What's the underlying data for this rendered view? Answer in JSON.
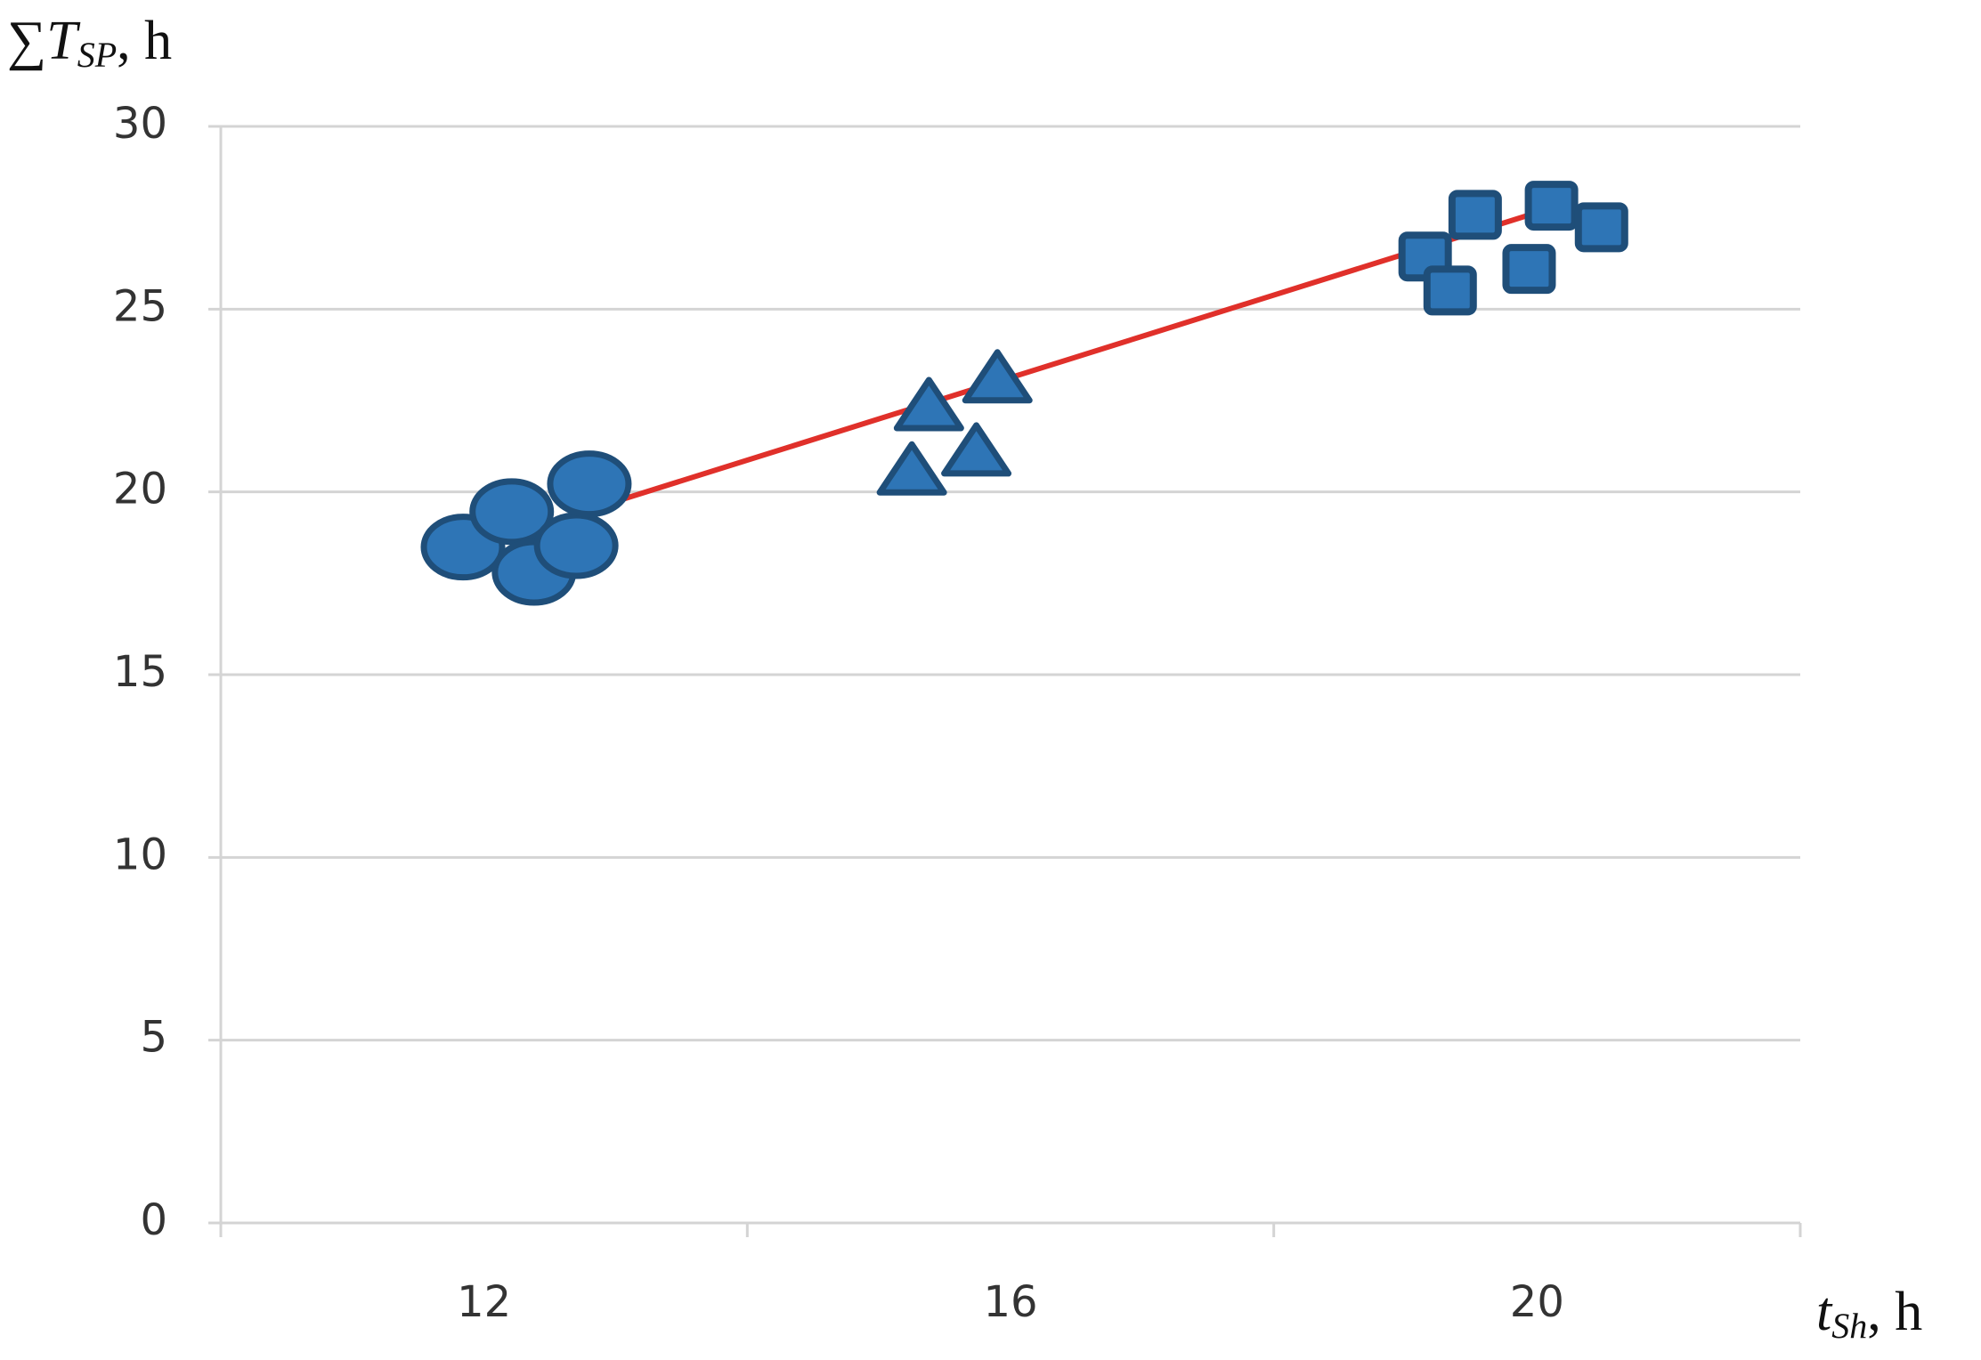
{
  "chart_data": {
    "type": "scatter",
    "y_label": {
      "main": "∑T",
      "sub": "SP",
      "suffix": ", h"
    },
    "x_label": {
      "main": "t",
      "sub": "Sh",
      "suffix": ", h"
    },
    "xlim": [
      10,
      22
    ],
    "xticks": [
      12,
      16,
      20
    ],
    "ylim": [
      0,
      30
    ],
    "yticks": [
      0,
      5,
      10,
      15,
      20,
      25,
      30
    ],
    "grid": true,
    "series": [
      {
        "marker": "circle",
        "color": "#2e75b6",
        "x": [
          11.84,
          12.21,
          12.38,
          12.7,
          12.8
        ],
        "values": [
          18.49,
          19.46,
          17.8,
          18.53,
          20.22
        ]
      },
      {
        "marker": "triangle",
        "color": "#2e75b6",
        "x": [
          15.38,
          15.9,
          15.25,
          15.74
        ],
        "values": [
          22.33,
          23.09,
          20.57,
          21.09
        ]
      },
      {
        "marker": "square",
        "color": "#2e75b6",
        "x": [
          19.15,
          19.53,
          19.34,
          20.11,
          19.94,
          20.49
        ],
        "values": [
          26.44,
          27.58,
          25.51,
          27.83,
          26.1,
          27.24
        ]
      }
    ],
    "trend_line": {
      "color": "#e0302a",
      "x": [
        12.54,
        20.13
      ],
      "values": [
        19.22,
        27.79
      ]
    }
  }
}
